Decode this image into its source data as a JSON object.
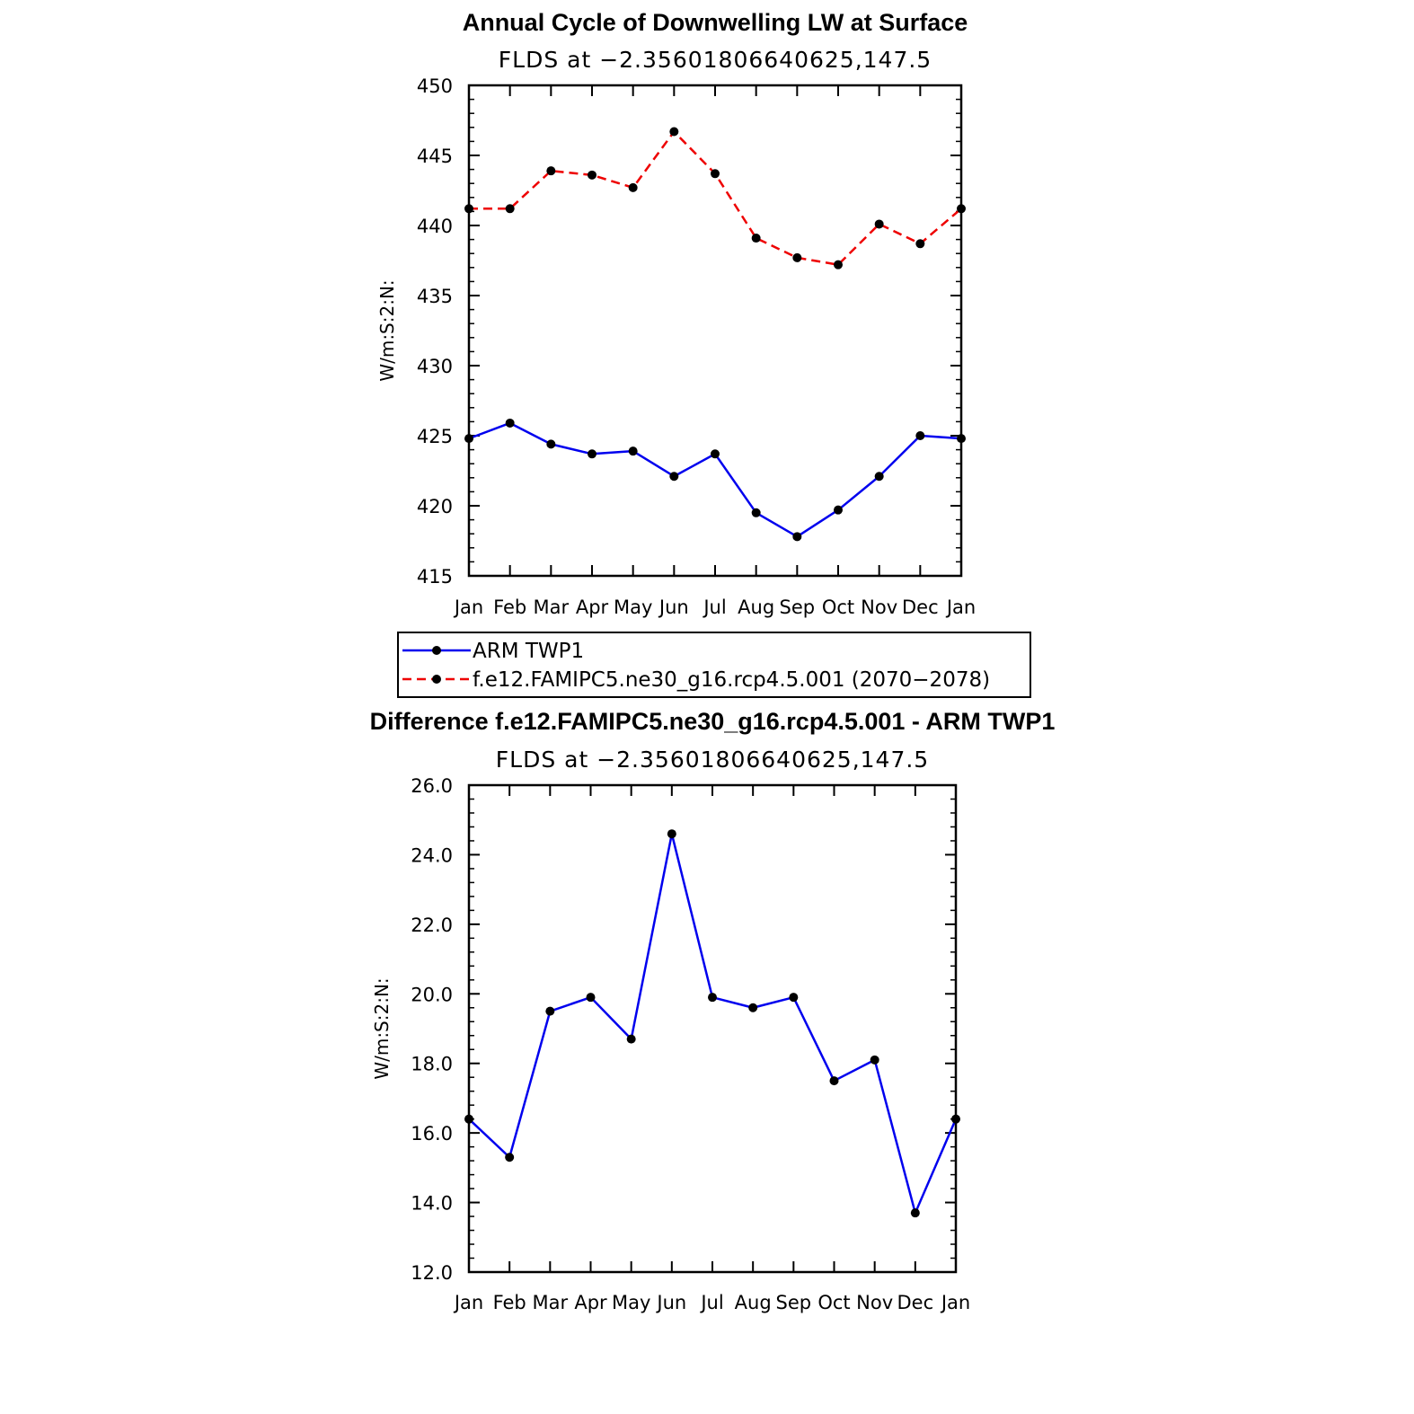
{
  "chart_data": [
    {
      "type": "line",
      "title": "Annual Cycle of Downwelling LW at Surface",
      "subtitle": "FLDS at −2.35601806640625,147.5",
      "ylabel": "W/m:S:2:N:",
      "xlabel": "",
      "categories": [
        "Jan",
        "Feb",
        "Mar",
        "Apr",
        "May",
        "Jun",
        "Jul",
        "Aug",
        "Sep",
        "Oct",
        "Nov",
        "Dec",
        "Jan"
      ],
      "ylim": [
        415,
        450
      ],
      "yticks": [
        "415",
        "420",
        "425",
        "430",
        "435",
        "440",
        "445",
        "450"
      ],
      "grid": false,
      "series": [
        {
          "name": "ARM TWP1",
          "color": "#0000ee",
          "dash": "solid",
          "values": [
            424.8,
            425.9,
            424.4,
            423.7,
            423.9,
            422.1,
            423.7,
            419.5,
            417.8,
            419.7,
            422.1,
            425.0,
            424.8
          ]
        },
        {
          "name": "f.e12.FAMIPC5.ne30_g16.rcp4.5.001 (2070−2078)",
          "color": "#ee0000",
          "dash": "dashed",
          "values": [
            441.2,
            441.2,
            443.9,
            443.6,
            442.7,
            446.7,
            443.7,
            439.1,
            437.7,
            437.2,
            440.1,
            438.7,
            441.2
          ]
        }
      ]
    },
    {
      "type": "line",
      "title": "Difference f.e12.FAMIPC5.ne30_g16.rcp4.5.001 - ARM TWP1",
      "subtitle": "FLDS at −2.35601806640625,147.5",
      "ylabel": "W/m:S:2:N:",
      "xlabel": "",
      "categories": [
        "Jan",
        "Feb",
        "Mar",
        "Apr",
        "May",
        "Jun",
        "Jul",
        "Aug",
        "Sep",
        "Oct",
        "Nov",
        "Dec",
        "Jan"
      ],
      "ylim": [
        12,
        26
      ],
      "yticks": [
        "12.0",
        "14.0",
        "16.0",
        "18.0",
        "20.0",
        "22.0",
        "24.0",
        "26.0"
      ],
      "grid": false,
      "series": [
        {
          "color": "#0000ee",
          "dash": "solid",
          "values": [
            16.4,
            15.3,
            19.5,
            19.9,
            18.7,
            24.6,
            19.9,
            19.6,
            19.9,
            17.5,
            18.1,
            13.7,
            16.4
          ]
        }
      ]
    }
  ]
}
